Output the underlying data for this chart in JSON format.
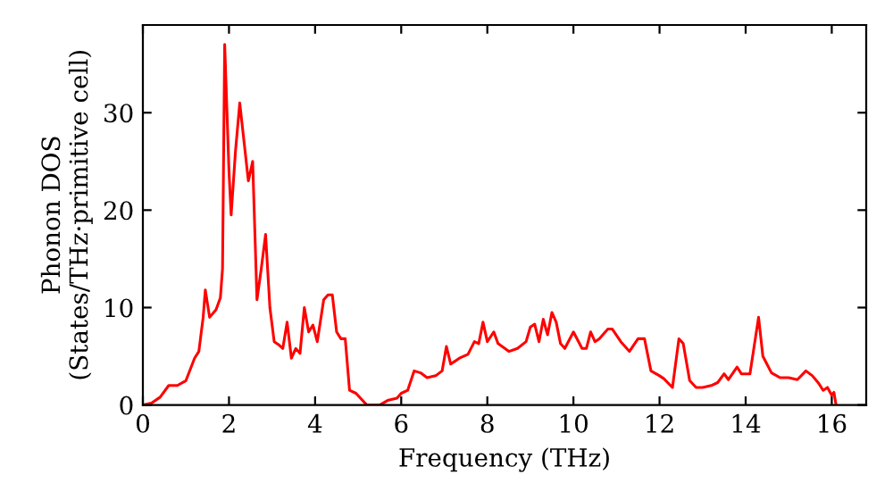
{
  "chart_data": {
    "type": "line",
    "xlabel": "Frequency (THz)",
    "ylabel": "Phonon DOS\n(States/THz·primitive cell)",
    "xlim": [
      0,
      16.8
    ],
    "ylim": [
      0,
      39
    ],
    "xticks": [
      0,
      2,
      4,
      6,
      8,
      10,
      12,
      14,
      16
    ],
    "yticks": [
      0,
      10,
      20,
      30
    ],
    "grid": false,
    "legend": false,
    "series": [
      {
        "color": "#ff0000",
        "x": [
          0,
          0.2,
          0.4,
          0.6,
          0.8,
          1.0,
          1.2,
          1.3,
          1.4,
          1.45,
          1.55,
          1.7,
          1.8,
          1.85,
          1.9,
          2.0,
          2.05,
          2.15,
          2.25,
          2.35,
          2.45,
          2.55,
          2.65,
          2.75,
          2.85,
          2.95,
          3.05,
          3.15,
          3.25,
          3.35,
          3.45,
          3.55,
          3.65,
          3.75,
          3.85,
          3.95,
          4.05,
          4.2,
          4.3,
          4.4,
          4.5,
          4.6,
          4.7,
          4.8,
          4.95,
          5.2,
          5.5,
          5.7,
          5.9,
          6.0,
          6.15,
          6.3,
          6.45,
          6.6,
          6.8,
          6.95,
          7.05,
          7.15,
          7.35,
          7.55,
          7.7,
          7.8,
          7.9,
          8.0,
          8.15,
          8.25,
          8.5,
          8.7,
          8.9,
          9.0,
          9.1,
          9.2,
          9.3,
          9.4,
          9.5,
          9.6,
          9.7,
          9.8,
          10.0,
          10.2,
          10.3,
          10.4,
          10.5,
          10.6,
          10.8,
          10.9,
          11.1,
          11.3,
          11.5,
          11.65,
          11.8,
          12.0,
          12.1,
          12.3,
          12.45,
          12.55,
          12.7,
          12.85,
          13.0,
          13.2,
          13.35,
          13.5,
          13.6,
          13.8,
          13.9,
          14.1,
          14.3,
          14.4,
          14.6,
          14.8,
          15.0,
          15.2,
          15.4,
          15.55,
          15.7,
          15.8,
          15.9,
          16.0,
          16.05,
          16.1
        ],
        "values": [
          0,
          0.2,
          0.8,
          2.0,
          2.0,
          2.5,
          4.8,
          5.5,
          9,
          11.8,
          9,
          9.8,
          11,
          14,
          37,
          24,
          19.5,
          26,
          31,
          27,
          23,
          25,
          10.8,
          14,
          17.5,
          10,
          6.5,
          6.2,
          5.8,
          8.5,
          4.8,
          5.8,
          5.3,
          10,
          7.5,
          8.2,
          6.5,
          10.8,
          11.3,
          11.3,
          7.5,
          6.8,
          6.8,
          1.5,
          1.2,
          0,
          0,
          0.5,
          0.7,
          1.2,
          1.5,
          3.5,
          3.3,
          2.8,
          3,
          3.5,
          6,
          4.2,
          4.8,
          5.2,
          6.5,
          6.3,
          8.5,
          6.5,
          7.5,
          6.3,
          5.5,
          5.8,
          6.5,
          8,
          8.3,
          6.5,
          8.8,
          7.2,
          9.5,
          8.5,
          6.3,
          5.8,
          7.5,
          5.8,
          5.8,
          7.5,
          6.5,
          6.8,
          7.8,
          7.8,
          6.5,
          5.5,
          6.8,
          6.8,
          3.5,
          3,
          2.7,
          1.8,
          6.8,
          6.3,
          2.5,
          1.8,
          1.8,
          2,
          2.3,
          3.2,
          2.6,
          3.9,
          3.2,
          3.2,
          9,
          5,
          3.3,
          2.8,
          2.8,
          2.6,
          3.5,
          3,
          2.2,
          1.5,
          1.8,
          1.0,
          1.3,
          0
        ]
      }
    ]
  }
}
